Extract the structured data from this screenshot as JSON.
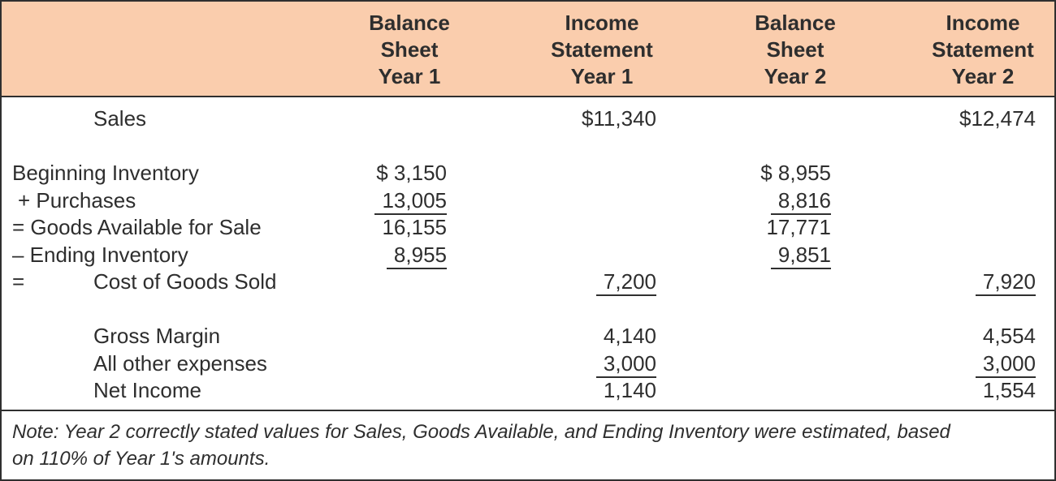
{
  "header": {
    "columns": [
      "Balance\nSheet\nYear 1",
      "Income\nStatement\nYear 1",
      "Balance\nSheet\nYear 2",
      "Income\nStatement\nYear 2"
    ]
  },
  "table": {
    "rows": [
      {
        "label": "Sales",
        "is1": "$11,340",
        "is2": "$12,474"
      },
      {
        "label": "Beginning Inventory",
        "bs1": "$ 3,150",
        "bs2": "$ 8,955"
      },
      {
        "label": "+ Purchases",
        "bs1": "13,005",
        "bs2": "8,816"
      },
      {
        "label": "= Goods Available for Sale",
        "bs1": "16,155",
        "bs2": "17,771"
      },
      {
        "label": "– Ending Inventory",
        "bs1": "8,955",
        "bs2": "9,851"
      },
      {
        "prefix": "=",
        "label": "Cost of Goods Sold",
        "is1": "7,200",
        "is2": "7,920"
      },
      {
        "label": "Gross Margin",
        "is1": "4,140",
        "is2": "4,554"
      },
      {
        "label": "All other expenses",
        "is1": "3,000",
        "is2": "3,000"
      },
      {
        "label": "Net Income",
        "is1": "1,140",
        "is2": "1,554"
      }
    ]
  },
  "note": {
    "line1": "Note: Year 2 correctly stated values for Sales, Goods Available, and Ending Inventory were estimated, based",
    "line2": "on 110% of Year 1's amounts."
  },
  "colors": {
    "header_bg": "#facdad",
    "border": "#2f2f2f",
    "text": "#2e2e2e"
  }
}
